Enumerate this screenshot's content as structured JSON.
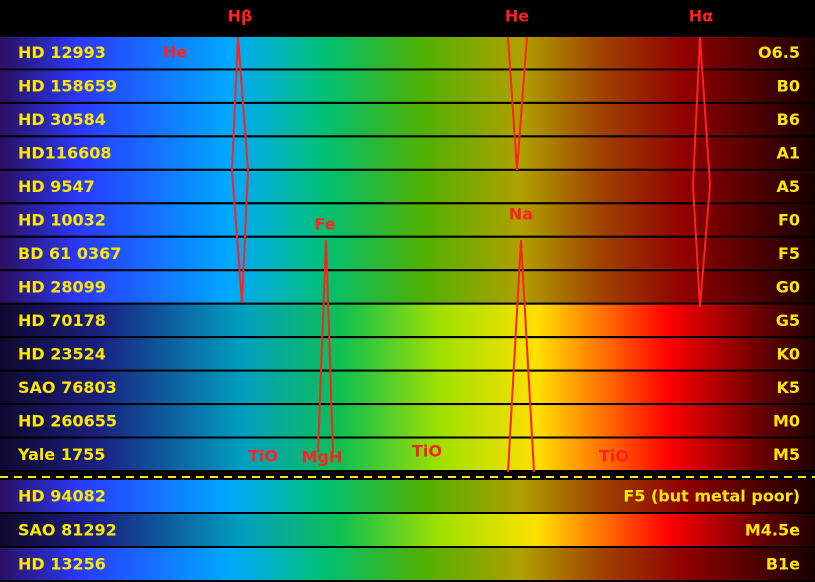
{
  "top_labels": [
    "Hβ",
    "He",
    "Hα"
  ],
  "rows": [
    {
      "name": "HD 12993",
      "type": "O6.5"
    },
    {
      "name": "HD 158659",
      "type": "B0"
    },
    {
      "name": "HD 30584",
      "type": "B6"
    },
    {
      "name": "HD116608",
      "type": "A1"
    },
    {
      "name": "HD 9547",
      "type": "A5"
    },
    {
      "name": "HD 10032",
      "type": "F0"
    },
    {
      "name": "BD 61 0367",
      "type": "F5"
    },
    {
      "name": "HD 28099",
      "type": "G0"
    },
    {
      "name": "HD 70178",
      "type": "G5"
    },
    {
      "name": "HD 23524",
      "type": "K0"
    },
    {
      "name": "SAO 76803",
      "type": "K5"
    },
    {
      "name": "HD 260655",
      "type": "M0"
    },
    {
      "name": "Yale 1755",
      "type": "M5"
    },
    {
      "name": "HD 94082",
      "type": "F5 (but metal poor)"
    },
    {
      "name": "SAO 81292",
      "type": "M4.5e"
    },
    {
      "name": "HD 13256",
      "type": "B1e"
    }
  ],
  "annotations": [
    "He",
    "Fe",
    "Na",
    "TiO",
    "MgH",
    "TiO",
    "TiO"
  ]
}
